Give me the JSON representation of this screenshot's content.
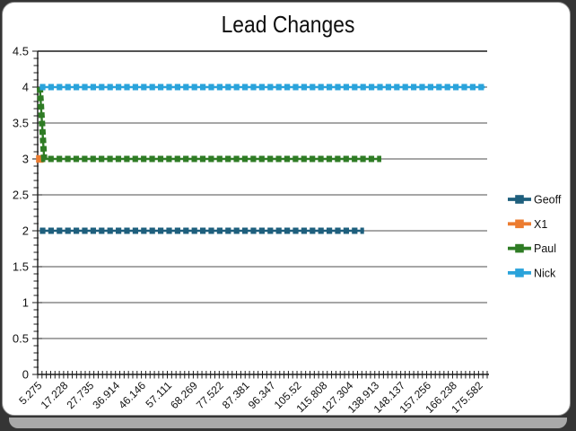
{
  "window": {
    "background_color": "#353535",
    "card_color": "#ffffff",
    "card_border_color": "#8f8f8f",
    "shadow_color": "#a9a9a9"
  },
  "chart_data": {
    "type": "line",
    "title": "Lead Changes",
    "xlabel": "",
    "ylabel": "",
    "ylim": [
      0,
      4.5
    ],
    "grid": {
      "horizontal_major": true,
      "vertical": false,
      "color": "#4d4d4d"
    },
    "legend": {
      "position": "right",
      "entries": [
        "Geoff",
        "X1",
        "Paul",
        "Nick"
      ]
    },
    "y_axis": {
      "min": 0,
      "max": 4.5,
      "major_step": 0.5,
      "minor_step": 0.1,
      "tick_labels": [
        "4.5",
        "4",
        "3.5",
        "3",
        "2.5",
        "2",
        "1.5",
        "1",
        "0.5",
        "0"
      ]
    },
    "x_axis": {
      "tick_labels": [
        "5.275",
        "17.228",
        "27.735",
        "36.914",
        "46.146",
        "57.111",
        "68.269",
        "77.522",
        "87.381",
        "96.347",
        "105.52",
        "115.808",
        "127.304",
        "138.913",
        "148.137",
        "157.256",
        "166.238",
        "175.582"
      ],
      "label_rotation_deg": -45,
      "categories_total": 104,
      "label_every_n_categories": 6
    },
    "series": [
      {
        "name": "Geoff",
        "color": "#1E5F7D",
        "style": "dashed-line-square-markers",
        "points_rle": [
          {
            "y": 2,
            "count": 76
          }
        ]
      },
      {
        "name": "X1",
        "color": "#EC7C30",
        "style": "dashed-line-square-markers",
        "points_rle": [
          {
            "y": 3,
            "count": 1
          }
        ]
      },
      {
        "name": "Paul",
        "color": "#2F7C25",
        "style": "dashed-line-square-markers",
        "points_rle": [
          {
            "y": 4,
            "count": 1
          },
          {
            "y": 3,
            "count": 79
          }
        ]
      },
      {
        "name": "Nick",
        "color": "#2AA3DB",
        "style": "dashed-line-square-markers",
        "points_rle": [
          {
            "y": 4,
            "count": 104
          }
        ]
      }
    ]
  }
}
